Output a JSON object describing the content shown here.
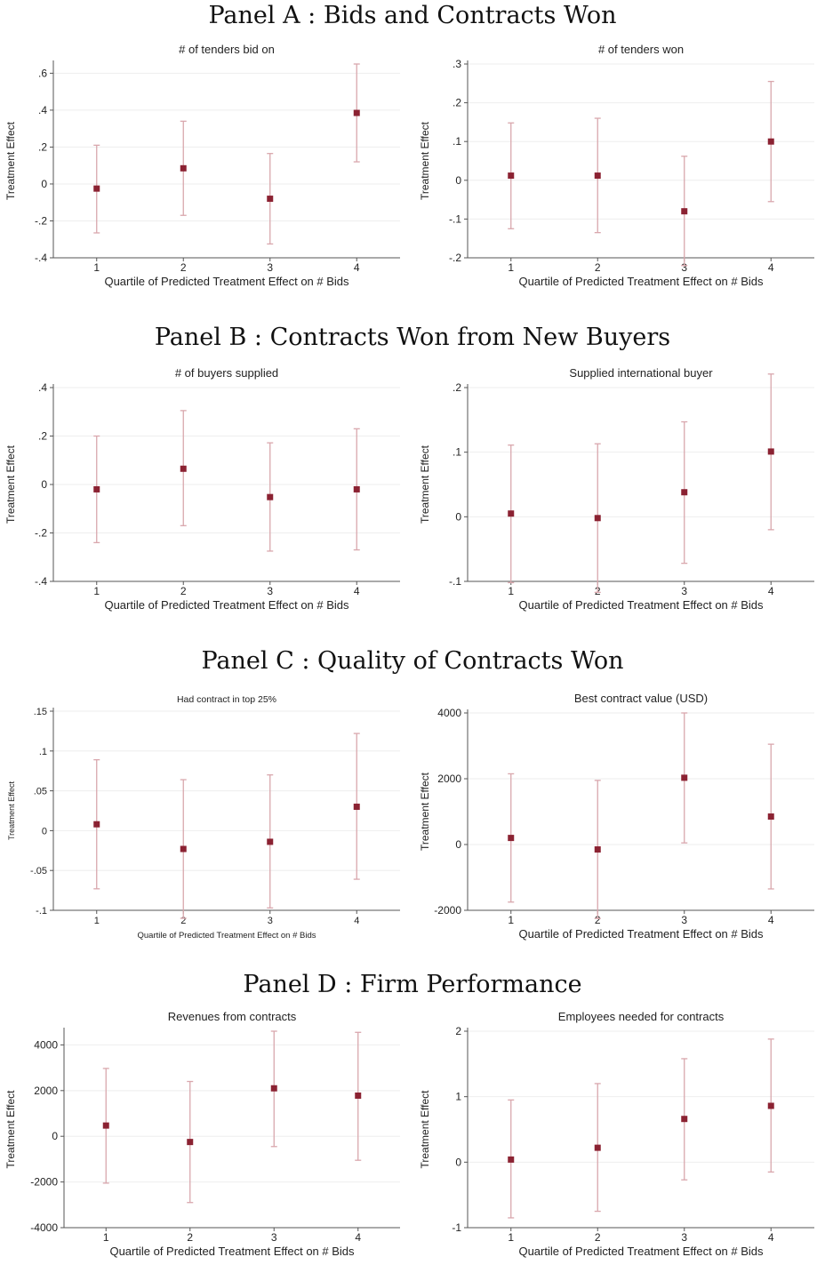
{
  "panels": [
    {
      "title": "Panel A : Bids and Contracts Won"
    },
    {
      "title": "Panel B : Contracts Won from New Buyers"
    },
    {
      "title": "Panel C : Quality of Contracts Won"
    },
    {
      "title": "Panel D : Firm Performance"
    }
  ],
  "colors": {
    "marker": "#8b2232",
    "ci": "#d9a7ad",
    "axis": "#555555",
    "grid": "#eeeeee"
  },
  "chart_data": [
    {
      "type": "scatter",
      "title": "# of tenders bid on",
      "xlabel": "Quartile of Predicted Treatment Effect on # Bids",
      "ylabel": "Treatment Effect",
      "x": [
        1,
        2,
        3,
        4
      ],
      "ylim": [
        -0.4,
        0.65
      ],
      "yticks": [
        -0.4,
        -0.2,
        0,
        0.2,
        0.4,
        0.6
      ],
      "yticklabels": [
        "-.4",
        "-.2",
        "0",
        ".2",
        ".4",
        ".6"
      ],
      "y": [
        -0.025,
        0.085,
        -0.08,
        0.385
      ],
      "ci_low": [
        -0.265,
        -0.17,
        -0.325,
        0.12
      ],
      "ci_high": [
        0.21,
        0.34,
        0.165,
        0.65
      ],
      "grid": true
    },
    {
      "type": "scatter",
      "title": "# of tenders won",
      "xlabel": "Quartile of Predicted Treatment Effect on # Bids",
      "ylabel": "Treatment Effect",
      "x": [
        1,
        2,
        3,
        4
      ],
      "ylim": [
        -0.2,
        0.3
      ],
      "yticks": [
        -0.2,
        -0.1,
        0,
        0.1,
        0.2,
        0.3
      ],
      "yticklabels": [
        "-.2",
        "-.1",
        "0",
        ".1",
        ".2",
        ".3"
      ],
      "y": [
        0.012,
        0.012,
        -0.08,
        0.1
      ],
      "ci_low": [
        -0.125,
        -0.135,
        -0.22,
        -0.055
      ],
      "ci_high": [
        0.148,
        0.16,
        0.062,
        0.255
      ],
      "grid": true
    },
    {
      "type": "scatter",
      "title": "# of buyers supplied",
      "xlabel": "Quartile of Predicted Treatment Effect on # Bids",
      "ylabel": "Treatment Effect",
      "x": [
        1,
        2,
        3,
        4
      ],
      "ylim": [
        -0.4,
        0.4
      ],
      "yticks": [
        -0.4,
        -0.2,
        0,
        0.2,
        0.4
      ],
      "yticklabels": [
        "-.4",
        "-.2",
        "0",
        ".2",
        ".4"
      ],
      "y": [
        -0.02,
        0.065,
        -0.052,
        -0.02
      ],
      "ci_low": [
        -0.24,
        -0.17,
        -0.275,
        -0.27
      ],
      "ci_high": [
        0.2,
        0.305,
        0.172,
        0.23
      ],
      "grid": true
    },
    {
      "type": "scatter",
      "title": "Supplied international buyer",
      "xlabel": "Quartile of Predicted Treatment Effect on # Bids",
      "ylabel": "Treatment Effect",
      "x": [
        1,
        2,
        3,
        4
      ],
      "ylim": [
        -0.1,
        0.2
      ],
      "yticks": [
        -0.1,
        0,
        0.1,
        0.2
      ],
      "yticklabels": [
        "-.1",
        "0",
        ".1",
        ".2"
      ],
      "y": [
        0.005,
        -0.002,
        0.038,
        0.101
      ],
      "ci_low": [
        -0.102,
        -0.117,
        -0.072,
        -0.02
      ],
      "ci_high": [
        0.111,
        0.113,
        0.147,
        0.221
      ],
      "grid": true
    },
    {
      "type": "scatter",
      "title": "Had contract in top 25%",
      "xlabel": "Quartile of Predicted Treatment Effect on # Bids",
      "ylabel": "Treatment Effect",
      "x": [
        1,
        2,
        3,
        4
      ],
      "ylim": [
        -0.1,
        0.15
      ],
      "yticks": [
        -0.1,
        -0.05,
        0,
        0.05,
        0.1,
        0.15
      ],
      "yticklabels": [
        "-.1",
        "-.05",
        "0",
        ".05",
        ".1",
        ".15"
      ],
      "y": [
        0.008,
        -0.023,
        -0.014,
        0.03
      ],
      "ci_low": [
        -0.073,
        -0.11,
        -0.097,
        -0.061
      ],
      "ci_high": [
        0.089,
        0.064,
        0.07,
        0.122
      ],
      "grid": true
    },
    {
      "type": "scatter",
      "title": "Best contract value (USD)",
      "xlabel": "Quartile of Predicted Treatment Effect on # Bids",
      "ylabel": "Treatment Effect",
      "x": [
        1,
        2,
        3,
        4
      ],
      "ylim": [
        -2000,
        4000
      ],
      "yticks": [
        -2000,
        0,
        2000,
        4000
      ],
      "yticklabels": [
        "-2000",
        "0",
        "2000",
        "4000"
      ],
      "y": [
        200,
        -150,
        2030,
        850
      ],
      "ci_low": [
        -1750,
        -2250,
        50,
        -1350
      ],
      "ci_high": [
        2150,
        1950,
        4000,
        3050
      ],
      "grid": true
    },
    {
      "type": "scatter",
      "title": "Revenues from contracts",
      "xlabel": "Quartile of Predicted Treatment Effect on # Bids",
      "ylabel": "Treatment Effect",
      "x": [
        1,
        2,
        3,
        4
      ],
      "ylim": [
        -4000,
        4600
      ],
      "yticks": [
        -4000,
        -2000,
        0,
        2000,
        4000
      ],
      "yticklabels": [
        "-4000",
        "-2000",
        "0",
        "2000",
        "4000"
      ],
      "y": [
        470,
        -250,
        2100,
        1780
      ],
      "ci_low": [
        -2050,
        -2900,
        -450,
        -1050
      ],
      "ci_high": [
        2970,
        2400,
        4600,
        4550
      ],
      "grid": true
    },
    {
      "type": "scatter",
      "title": "Employees needed for contracts",
      "xlabel": "Quartile of Predicted Treatment Effect on # Bids",
      "ylabel": "Treatment Effect",
      "x": [
        1,
        2,
        3,
        4
      ],
      "ylim": [
        -1,
        2
      ],
      "yticks": [
        -1,
        0,
        1,
        2
      ],
      "yticklabels": [
        "-1",
        "0",
        "1",
        "2"
      ],
      "y": [
        0.04,
        0.22,
        0.66,
        0.86
      ],
      "ci_low": [
        -0.85,
        -0.75,
        -0.27,
        -0.15
      ],
      "ci_high": [
        0.95,
        1.2,
        1.58,
        1.88
      ],
      "grid": true
    }
  ]
}
